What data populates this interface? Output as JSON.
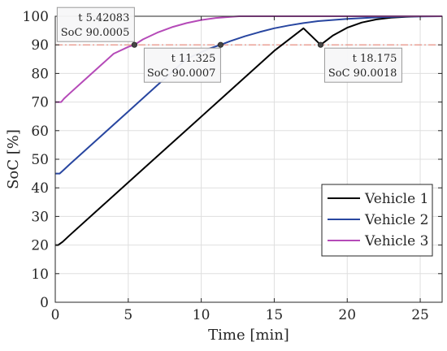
{
  "chart_data": {
    "type": "line",
    "xlabel": "Time [min]",
    "ylabel": "SoC [%]",
    "xlim": [
      0,
      26.5
    ],
    "ylim": [
      0,
      100
    ],
    "xticks": [
      0,
      5,
      10,
      15,
      20,
      25
    ],
    "yticks": [
      0,
      10,
      20,
      30,
      40,
      50,
      60,
      70,
      80,
      90,
      100
    ],
    "grid": true,
    "legend_position": "bottom-right",
    "reference_line": {
      "y": 90,
      "color": "#e8877a",
      "style": "dash-dot"
    },
    "series": [
      {
        "name": "Vehicle 1",
        "color": "#000000",
        "x": [
          0,
          0.2,
          0.5,
          1,
          3,
          5,
          7,
          9,
          11,
          13,
          15,
          17,
          18.175,
          19,
          20,
          21,
          22,
          23,
          24,
          25,
          25.5,
          26.5
        ],
        "y": [
          20,
          20,
          21.1,
          23.5,
          32.7,
          41.9,
          51.1,
          60.3,
          69.5,
          78.7,
          87.9,
          95.8,
          90.0018,
          93.2,
          96.0,
          97.8,
          98.9,
          99.5,
          99.8,
          100,
          100,
          100
        ]
      },
      {
        "name": "Vehicle 2",
        "color": "#2846a0",
        "x": [
          0,
          0.3,
          0.5,
          1,
          3,
          5,
          7,
          9,
          10.5,
          11.325,
          12,
          13,
          14,
          15,
          16,
          17,
          18,
          20,
          22,
          24,
          26.5
        ],
        "y": [
          45,
          45,
          45.9,
          48.3,
          57.5,
          66.7,
          75.9,
          85.1,
          88.6,
          90.0007,
          91.3,
          93.0,
          94.5,
          95.8,
          96.8,
          97.6,
          98.3,
          99.1,
          99.6,
          99.9,
          100
        ]
      },
      {
        "name": "Vehicle 3",
        "color": "#b54ab8",
        "x": [
          0,
          0.4,
          0.6,
          1,
          2,
          3,
          4,
          5,
          5.42083,
          6,
          7,
          8,
          9,
          10,
          11,
          12,
          12.6,
          14,
          20,
          26.5
        ],
        "y": [
          70,
          70,
          71.2,
          73.1,
          77.7,
          82.3,
          86.9,
          89.3,
          90.0005,
          91.9,
          94.3,
          96.2,
          97.6,
          98.7,
          99.4,
          99.8,
          100,
          100,
          100,
          100
        ]
      }
    ],
    "datatips": [
      {
        "series": "Vehicle 3",
        "x": 5.42083,
        "y": 90.0005,
        "line1": "t 5.42083",
        "line2": "SoC 90.0005"
      },
      {
        "series": "Vehicle 2",
        "x": 11.325,
        "y": 90.0007,
        "line1": "t 11.325",
        "line2": "SoC 90.0007"
      },
      {
        "series": "Vehicle 1",
        "x": 18.175,
        "y": 90.0018,
        "line1": "t 18.175",
        "line2": "SoC 90.0018"
      }
    ]
  }
}
